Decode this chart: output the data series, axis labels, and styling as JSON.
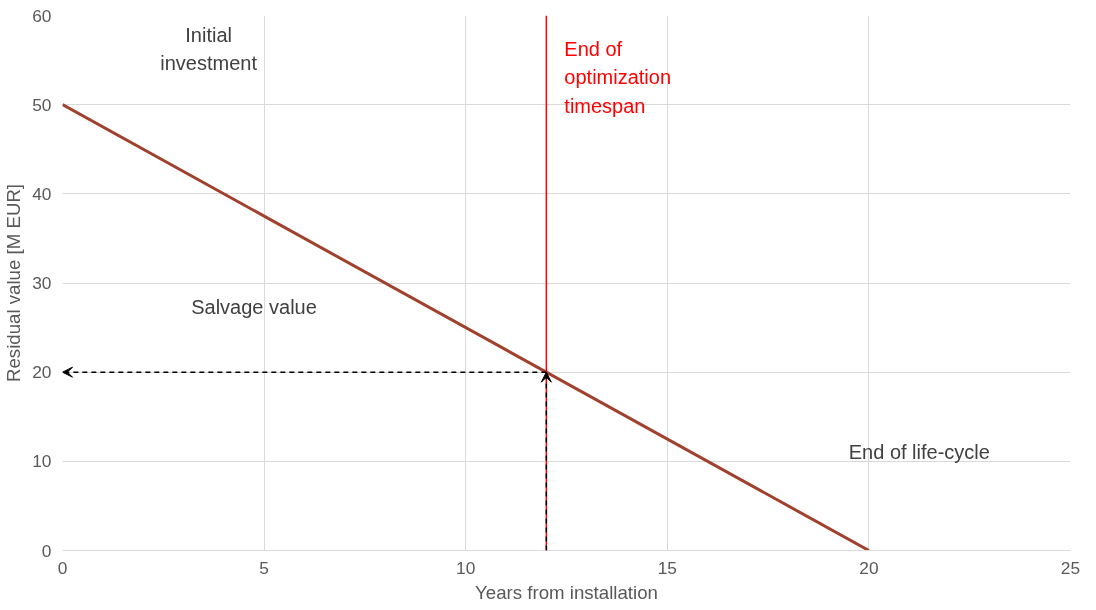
{
  "chart_data": {
    "type": "line",
    "xlabel": "Years from installation",
    "ylabel": "Residual value [M EUR]",
    "x": [
      0,
      20
    ],
    "series": [
      {
        "color": "#a0412d",
        "values": [
          50,
          0
        ]
      }
    ],
    "xlim": [
      0,
      25
    ],
    "xticks": [
      0,
      5,
      10,
      15,
      20,
      25
    ],
    "ylim": [
      0,
      60
    ],
    "yticks": [
      0,
      10,
      20,
      30,
      40,
      50,
      60
    ],
    "grid": true,
    "marker": "none",
    "line_style": "solid",
    "ref_lines": [
      {
        "axis": "x",
        "value": 12,
        "label": "End of\noptimization\ntimespan",
        "color": "#ff0000",
        "line_style": "solid"
      }
    ],
    "annotations": [
      "Initial\ninvestment",
      "Salvage value",
      "End of life-cycle"
    ]
  }
}
